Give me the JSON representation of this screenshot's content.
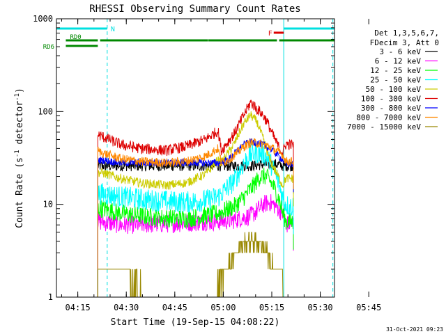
{
  "chart_data": {
    "type": "line",
    "title": "RHESSI Observing Summary Count Rates",
    "xlabel": "Start Time (19-Sep-15 04:08:22)",
    "ylabel_main": "Count Rate (s",
    "ylabel_sup1": "-1",
    "ylabel_mid": " detector",
    "ylabel_sup2": "-1",
    "ylabel_end": ")",
    "yscale": "log",
    "ylim": [
      1,
      1000
    ],
    "xlim_min": [
      0,
      86
    ],
    "x_tick_labels": [
      "04:15",
      "04:30",
      "04:45",
      "05:00",
      "05:15",
      "05:30",
      "05:45"
    ],
    "x_tick_values_min": [
      6.6,
      21.6,
      36.6,
      51.6,
      66.6,
      81.6,
      96.6
    ],
    "y_tick_labels": [
      "1",
      "10",
      "100",
      "1000"
    ],
    "y_tick_values": [
      1,
      10,
      100,
      1000
    ],
    "legend": {
      "header": [
        "Det 1,3,5,6,7,",
        "FDecim 3, Att 0"
      ],
      "placement": "right",
      "entries": [
        {
          "label": "3 - 6 keV",
          "color": "#000000"
        },
        {
          "label": "6 - 12 keV",
          "color": "#ff00ff"
        },
        {
          "label": "12 - 25 keV",
          "color": "#00ff00"
        },
        {
          "label": "25 - 50 keV",
          "color": "#00ffff"
        },
        {
          "label": "50 - 100 keV",
          "color": "#cccc00"
        },
        {
          "label": "100 - 300 keV",
          "color": "#dd0000"
        },
        {
          "label": "300 - 800 keV",
          "color": "#0000ff"
        },
        {
          "label": "800 - 7000 keV",
          "color": "#ff8800"
        },
        {
          "label": "7000 - 15000 keV",
          "color": "#998800"
        }
      ]
    },
    "annotations": {
      "night_label": "N",
      "flare_label": "F",
      "rd0_label": "RD0",
      "rd6_label": "RD6",
      "night_color": "#00e0e0",
      "flare_color": "#dd0000",
      "rd_color": "#008800",
      "night_bars_min": [
        [
          0,
          15.7
        ],
        [
          70.3,
          86
        ]
      ],
      "flare_bar_min": [
        67.2,
        70.3
      ],
      "rd0_bars_min": [
        [
          2.9,
          12.8
        ],
        [
          13.5,
          46.9
        ],
        [
          47.0,
          68.2
        ],
        [
          68.9,
          86
        ]
      ],
      "rd6_bars_min": [
        [
          2.9,
          12.8
        ]
      ],
      "vertical_lines_solid_min": [
        0,
        70.3
      ],
      "vertical_lines_dashed_min": [
        15.7,
        85.5
      ]
    },
    "data_start_min": 12.8,
    "data_end_min": 73.3,
    "series": [
      {
        "name": "3 - 6 keV",
        "color": "#000000",
        "noise": 0.06,
        "x": [
          12.8,
          14,
          20,
          30,
          40,
          50,
          55,
          60,
          64,
          66,
          68,
          70,
          71,
          72,
          73.3
        ],
        "y": [
          26,
          26,
          26,
          26,
          26,
          26,
          26,
          26,
          27,
          27,
          27,
          26,
          26,
          26,
          26
        ]
      },
      {
        "name": "6 - 12 keV",
        "color": "#ff00ff",
        "noise": 0.1,
        "x": [
          12.8,
          14,
          20,
          30,
          40,
          46,
          50,
          55,
          60,
          62,
          64,
          66,
          68,
          70,
          71,
          72,
          73.3
        ],
        "y": [
          6.5,
          6.5,
          6,
          6.1,
          6.3,
          6.5,
          6.5,
          6.8,
          7.5,
          8.5,
          10,
          10.5,
          9.5,
          8,
          6,
          6.2,
          6.3
        ]
      },
      {
        "name": "12 - 25 keV",
        "color": "#00ff00",
        "noise": 0.1,
        "x": [
          12.8,
          14,
          20,
          30,
          40,
          46,
          50,
          55,
          58,
          61,
          63,
          65,
          67,
          69,
          70,
          71,
          72,
          73.3
        ],
        "y": [
          9,
          9,
          8,
          7.2,
          7,
          7.5,
          8,
          9.5,
          12,
          16,
          20,
          20,
          16,
          11,
          8,
          6.5,
          6.5,
          6.5
        ]
      },
      {
        "name": "25 - 50 keV",
        "color": "#00ffff",
        "noise": 0.12,
        "x": [
          12.8,
          14,
          20,
          30,
          40,
          46,
          50,
          55,
          58,
          60,
          62,
          64,
          66,
          68,
          70,
          71,
          72,
          73.3
        ],
        "y": [
          13,
          13,
          12,
          11,
          10.5,
          11,
          12,
          18,
          28,
          34,
          36,
          35,
          29,
          20,
          12,
          10,
          9.5,
          9.5
        ]
      },
      {
        "name": "50 - 100 keV",
        "color": "#cccc00",
        "noise": 0.05,
        "x": [
          12.8,
          14,
          20,
          26,
          34,
          40,
          46,
          50,
          51,
          55,
          58,
          60,
          62,
          64,
          66,
          68,
          70,
          71,
          72,
          73.3
        ],
        "y": [
          22,
          22,
          19,
          17,
          16,
          17,
          21,
          30,
          28,
          45,
          75,
          92,
          78,
          50,
          30,
          22,
          16,
          19,
          19,
          19
        ]
      },
      {
        "name": "100 - 300 keV",
        "color": "#dd0000",
        "noise": 0.06,
        "x": [
          12.8,
          14,
          20,
          26,
          34,
          40,
          46,
          50,
          51,
          55,
          58,
          60,
          61,
          62,
          63,
          65,
          67,
          69,
          70,
          71,
          72,
          73.3
        ],
        "y": [
          56,
          54,
          44,
          40,
          38,
          42,
          50,
          62,
          38,
          58,
          92,
          125,
          118,
          105,
          100,
          80,
          55,
          40,
          36,
          45,
          44,
          44
        ]
      },
      {
        "name": "300 - 800 keV",
        "color": "#0000ff",
        "noise": 0.04,
        "x": [
          12.8,
          14,
          20,
          26,
          34,
          40,
          46,
          50,
          51,
          53,
          56,
          58,
          60,
          62,
          64,
          66,
          68,
          70,
          71,
          72,
          73.3
        ],
        "y": [
          30,
          30,
          28,
          28,
          28,
          28,
          28,
          28,
          28,
          30,
          38,
          44,
          47,
          46,
          44,
          40,
          35,
          30,
          27,
          27,
          27
        ]
      },
      {
        "name": "800 - 7000 keV",
        "color": "#ff8800",
        "noise": 0.05,
        "x": [
          12.8,
          14,
          20,
          26,
          34,
          40,
          46,
          50,
          51,
          53,
          56,
          58,
          60,
          62,
          64,
          66,
          68,
          70,
          71,
          72,
          73.3
        ],
        "y": [
          38,
          36,
          31,
          29,
          28,
          29,
          33,
          40,
          28,
          30,
          36,
          42,
          46,
          46,
          44,
          42,
          38,
          34,
          29,
          29,
          29
        ]
      },
      {
        "name": "7000 - 15000 keV",
        "color": "#998800",
        "noise": 0,
        "x": [
          12.8,
          14,
          20,
          24,
          30,
          40,
          46,
          50,
          52,
          54,
          56,
          58,
          60,
          62,
          64,
          66,
          68,
          70,
          71,
          72,
          73.3
        ],
        "y": [
          2,
          2,
          2,
          1.5,
          1,
          1,
          1,
          1.3,
          1.8,
          2.5,
          3.2,
          4,
          4,
          4,
          3.5,
          2.6,
          2,
          1.5,
          1,
          1,
          1
        ]
      }
    ]
  },
  "footer": {
    "timestamp": "31-Oct-2021 09:23"
  }
}
